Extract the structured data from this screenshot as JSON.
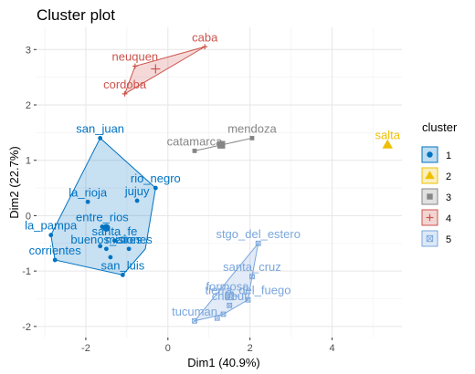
{
  "chart_data": {
    "type": "scatter",
    "title": "Cluster plot",
    "xlabel": "Dim1 (40.9%)",
    "ylabel": "Dim2 (22.7%)",
    "xlim": [
      -3.2,
      5.7
    ],
    "ylim": [
      -2.2,
      3.4
    ],
    "x_ticks": [
      -2,
      0,
      2,
      4
    ],
    "y_ticks": [
      -2,
      -1,
      0,
      1,
      2,
      3
    ],
    "grid": true,
    "legend": {
      "title": "cluster",
      "position": "right"
    },
    "clusters": [
      {
        "name": "1",
        "color": "#0073C2",
        "hull": [
          [
            -1.65,
            1.4
          ],
          [
            -0.3,
            0.5
          ],
          [
            -0.55,
            -0.6
          ],
          [
            -1.1,
            -1.07
          ],
          [
            -2.75,
            -0.8
          ],
          [
            -2.85,
            -0.35
          ]
        ],
        "center": [
          -1.5,
          -0.22
        ],
        "points": [
          {
            "label": "san_juan",
            "x": -1.65,
            "y": 1.4
          },
          {
            "label": "rio_negro",
            "x": -0.3,
            "y": 0.5
          },
          {
            "label": "jujuy",
            "x": -0.75,
            "y": 0.27
          },
          {
            "label": "la_rioja",
            "x": -1.95,
            "y": 0.25
          },
          {
            "label": "entre_rios",
            "x": -1.6,
            "y": -0.2
          },
          {
            "label": "la_pampa",
            "x": -2.85,
            "y": -0.35
          },
          {
            "label": "santa_fe",
            "x": -1.3,
            "y": -0.45
          },
          {
            "label": "misiones",
            "x": -0.95,
            "y": -0.6
          },
          {
            "label": "buenos_aires",
            "x": -1.5,
            "y": -0.6
          },
          {
            "label": "corrientes",
            "x": -2.75,
            "y": -0.8
          },
          {
            "label": "san_luis",
            "x": -1.1,
            "y": -1.07
          },
          {
            "label": "",
            "x": -1.4,
            "y": -0.75
          },
          {
            "label": "",
            "x": -1.65,
            "y": -0.55
          }
        ]
      },
      {
        "name": "2",
        "color": "#EFC000",
        "hull": [],
        "center": [
          5.35,
          1.28
        ],
        "points": [
          {
            "label": "salta",
            "x": 5.35,
            "y": 1.28
          }
        ]
      },
      {
        "name": "3",
        "color": "#868686",
        "hull": [
          [
            0.65,
            1.17
          ],
          [
            2.05,
            1.4
          ]
        ],
        "center": [
          1.3,
          1.28
        ],
        "points": [
          {
            "label": "catamarca",
            "x": 0.65,
            "y": 1.17
          },
          {
            "label": "mendoza",
            "x": 2.05,
            "y": 1.4
          }
        ]
      },
      {
        "name": "4",
        "color": "#CD534C",
        "hull": [
          [
            0.9,
            3.05
          ],
          [
            -1.05,
            2.2
          ],
          [
            -0.8,
            2.7
          ]
        ],
        "center": [
          -0.3,
          2.65
        ],
        "points": [
          {
            "label": "caba",
            "x": 0.9,
            "y": 3.05
          },
          {
            "label": "neuquen",
            "x": -0.8,
            "y": 2.7
          },
          {
            "label": "cordoba",
            "x": -1.05,
            "y": 2.2
          }
        ]
      },
      {
        "name": "5",
        "color": "#7AA6DC",
        "hull": [
          [
            2.2,
            -0.5
          ],
          [
            0.65,
            -1.9
          ],
          [
            1.35,
            -1.78
          ],
          [
            1.95,
            -1.52
          ],
          [
            2.05,
            -1.1
          ]
        ],
        "center": [
          1.5,
          -1.45
        ],
        "points": [
          {
            "label": "stgo_del_estero",
            "x": 2.2,
            "y": -0.5
          },
          {
            "label": "santa_cruz",
            "x": 2.05,
            "y": -1.1
          },
          {
            "label": "tierra_del_fuego",
            "x": 1.95,
            "y": -1.52
          },
          {
            "label": "chubut",
            "x": 1.5,
            "y": -1.62
          },
          {
            "label": "formosa",
            "x": 1.45,
            "y": -1.45
          },
          {
            "label": "tucuman",
            "x": 0.65,
            "y": -1.9
          },
          {
            "label": "",
            "x": 1.35,
            "y": -1.78
          },
          {
            "label": "",
            "x": 1.2,
            "y": -1.85
          }
        ]
      }
    ]
  }
}
